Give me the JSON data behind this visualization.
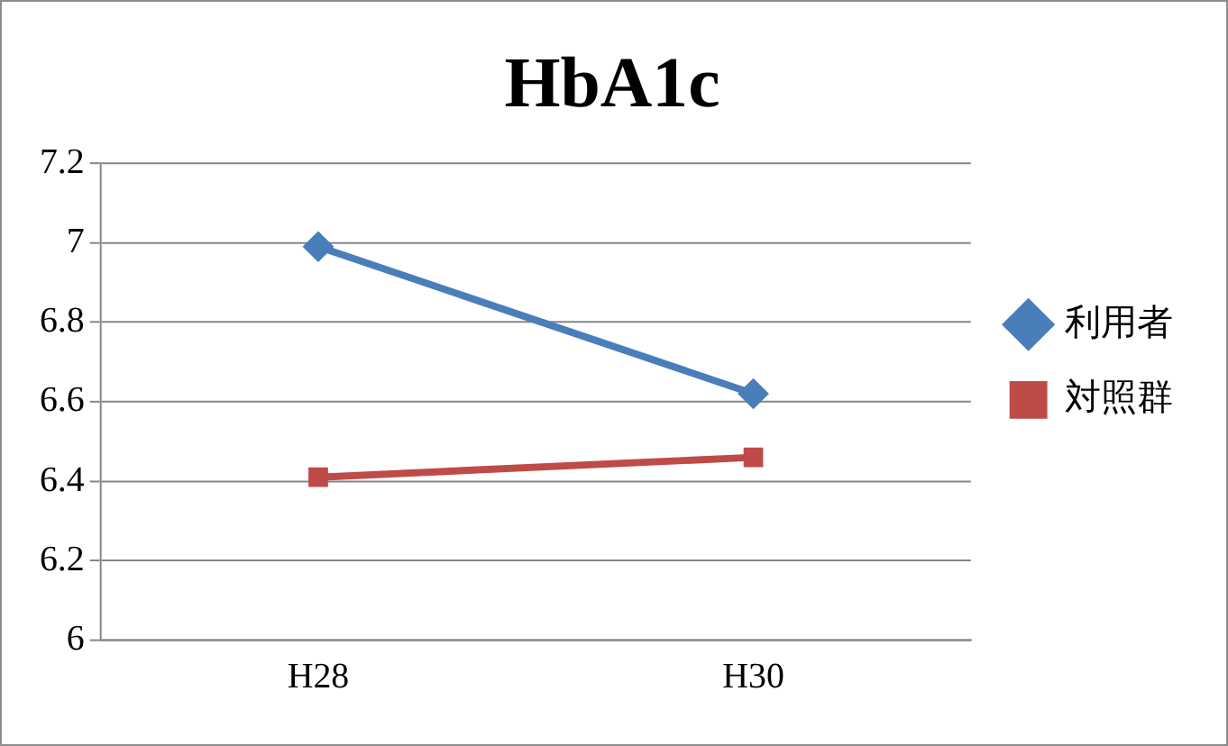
{
  "chart_data": {
    "type": "line",
    "title": "HbA1c",
    "categories": [
      "H28",
      "H30"
    ],
    "series": [
      {
        "name": "利用者",
        "color": "#4a7ebb",
        "values": [
          6.99,
          6.62
        ],
        "marker": "diamond"
      },
      {
        "name": "対照群",
        "color": "#be4b48",
        "values": [
          6.41,
          6.46
        ],
        "marker": "square"
      }
    ],
    "ylim": [
      6,
      7.2
    ],
    "yticks": [
      6,
      6.2,
      6.4,
      6.6,
      6.8,
      7,
      7.2
    ],
    "grid": "y",
    "legend": "right"
  }
}
